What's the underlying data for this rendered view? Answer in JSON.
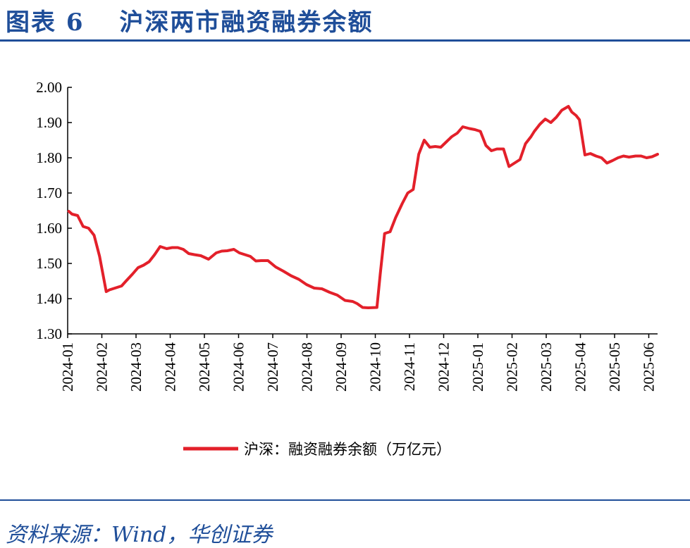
{
  "header": {
    "title": "图表 6　 沪深两市融资融券余额"
  },
  "footer": {
    "source": "资料来源：Wind，华创证券"
  },
  "colors": {
    "accent": "#1f4e99",
    "series": "#e3202a"
  },
  "chart_data": {
    "type": "line",
    "title": "图表 6　 沪深两市融资融券余额",
    "xlabel": "",
    "ylabel": "",
    "ylim": [
      1.3,
      2.0
    ],
    "yticks": [
      "1.30",
      "1.40",
      "1.50",
      "1.60",
      "1.70",
      "1.80",
      "1.90",
      "2.00"
    ],
    "xticks": [
      "2024-01",
      "2024-02",
      "2024-03",
      "2024-04",
      "2024-05",
      "2024-06",
      "2024-07",
      "2024-08",
      "2024-09",
      "2024-10",
      "2024-11",
      "2024-12",
      "2025-01",
      "2025-02",
      "2025-03",
      "2025-04",
      "2025-05",
      "2025-06"
    ],
    "legend": "bottom-center",
    "grid": false,
    "series": [
      {
        "name": "沪深：融资融券余额（万亿元）",
        "x": [
          "2024-01-02",
          "2024-01-05",
          "2024-01-10",
          "2024-01-15",
          "2024-01-20",
          "2024-01-25",
          "2024-01-30",
          "2024-02-05",
          "2024-02-08",
          "2024-02-19",
          "2024-02-23",
          "2024-02-29",
          "2024-03-05",
          "2024-03-10",
          "2024-03-15",
          "2024-03-20",
          "2024-03-25",
          "2024-03-31",
          "2024-04-05",
          "2024-04-10",
          "2024-04-15",
          "2024-04-20",
          "2024-04-25",
          "2024-05-01",
          "2024-05-08",
          "2024-05-15",
          "2024-05-20",
          "2024-05-25",
          "2024-05-31",
          "2024-06-05",
          "2024-06-10",
          "2024-06-15",
          "2024-06-20",
          "2024-06-25",
          "2024-07-01",
          "2024-07-08",
          "2024-07-15",
          "2024-07-22",
          "2024-07-29",
          "2024-08-05",
          "2024-08-12",
          "2024-08-19",
          "2024-08-26",
          "2024-09-02",
          "2024-09-09",
          "2024-09-16",
          "2024-09-20",
          "2024-09-25",
          "2024-09-30",
          "2024-10-08",
          "2024-10-11",
          "2024-10-15",
          "2024-10-20",
          "2024-10-25",
          "2024-10-31",
          "2024-11-05",
          "2024-11-10",
          "2024-11-15",
          "2024-11-20",
          "2024-11-25",
          "2024-11-30",
          "2024-12-05",
          "2024-12-10",
          "2024-12-15",
          "2024-12-20",
          "2024-12-25",
          "2024-12-31",
          "2025-01-05",
          "2025-01-10",
          "2025-01-15",
          "2025-01-20",
          "2025-01-25",
          "2025-01-31",
          "2025-02-05",
          "2025-02-10",
          "2025-02-15",
          "2025-02-20",
          "2025-02-25",
          "2025-02-28",
          "2025-03-05",
          "2025-03-10",
          "2025-03-15",
          "2025-03-20",
          "2025-03-25",
          "2025-03-31",
          "2025-04-03",
          "2025-04-07",
          "2025-04-10",
          "2025-04-15",
          "2025-04-20",
          "2025-04-25",
          "2025-04-30",
          "2025-05-05",
          "2025-05-10",
          "2025-05-15",
          "2025-05-20",
          "2025-05-25",
          "2025-05-31",
          "2025-06-05",
          "2025-06-10",
          "2025-06-15",
          "2025-06-20"
        ],
        "values": [
          1.648,
          1.64,
          1.636,
          1.605,
          1.6,
          1.58,
          1.52,
          1.42,
          1.425,
          1.436,
          1.45,
          1.47,
          1.488,
          1.495,
          1.505,
          1.525,
          1.548,
          1.542,
          1.545,
          1.545,
          1.54,
          1.528,
          1.525,
          1.522,
          1.512,
          1.53,
          1.535,
          1.536,
          1.54,
          1.53,
          1.525,
          1.52,
          1.507,
          1.508,
          1.508,
          1.49,
          1.478,
          1.465,
          1.455,
          1.44,
          1.43,
          1.428,
          1.418,
          1.41,
          1.395,
          1.392,
          1.386,
          1.375,
          1.374,
          1.375,
          1.47,
          1.585,
          1.59,
          1.63,
          1.67,
          1.7,
          1.71,
          1.81,
          1.85,
          1.83,
          1.832,
          1.83,
          1.845,
          1.86,
          1.87,
          1.888,
          1.883,
          1.88,
          1.875,
          1.835,
          1.82,
          1.825,
          1.825,
          1.775,
          1.785,
          1.795,
          1.84,
          1.86,
          1.875,
          1.895,
          1.91,
          1.9,
          1.915,
          1.935,
          1.946,
          1.93,
          1.92,
          1.908,
          1.808,
          1.812,
          1.805,
          1.8,
          1.785,
          1.792,
          1.8,
          1.805,
          1.802,
          1.805,
          1.805,
          1.8,
          1.803,
          1.81
        ]
      }
    ]
  }
}
